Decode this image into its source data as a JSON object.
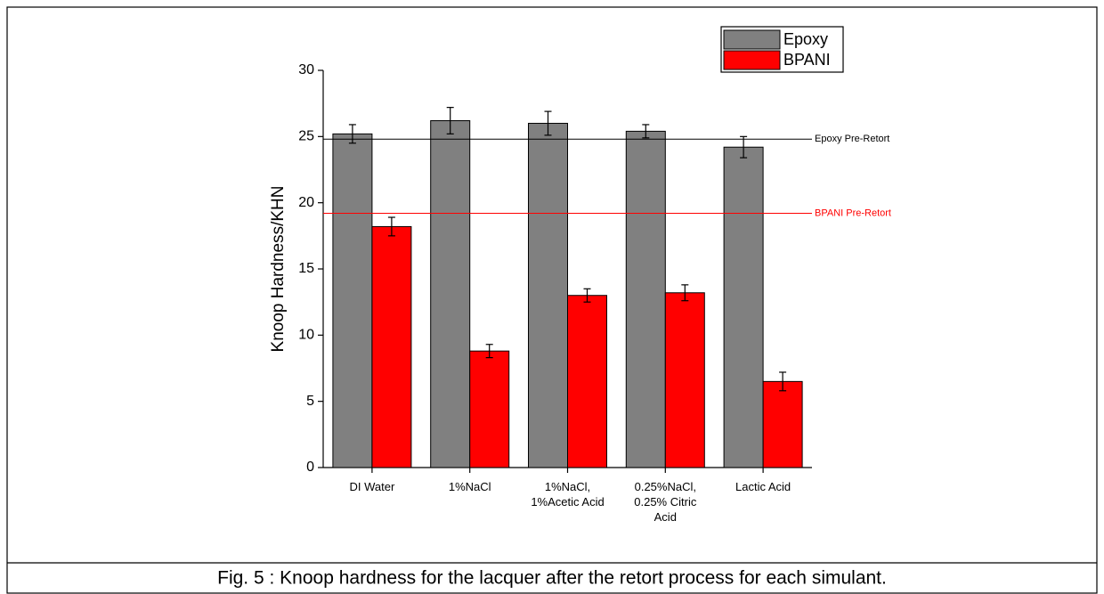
{
  "chart_data": {
    "type": "bar",
    "caption": "Fig. 5 : Knoop hardness for the lacquer after the retort process for each simulant.",
    "ylabel": "Knoop Hardness/KHN",
    "categories": [
      "DI Water",
      "1%NaCl",
      "1%NaCl,\n1%Acetic Acid",
      "0.25%NaCl,\n0.25% Citric\nAcid",
      "Lactic Acid"
    ],
    "series": [
      {
        "name": "Epoxy",
        "color": "#808080",
        "values": [
          25.2,
          26.2,
          26.0,
          25.4,
          24.2
        ],
        "errors": [
          0.7,
          1.0,
          0.9,
          0.5,
          0.8
        ]
      },
      {
        "name": "BPANI",
        "color": "#ff0000",
        "values": [
          18.2,
          8.8,
          13.0,
          13.2,
          6.5
        ],
        "errors": [
          0.7,
          0.5,
          0.5,
          0.6,
          0.7
        ]
      }
    ],
    "reference_lines": [
      {
        "label": "Epoxy Pre-Retort",
        "value": 24.8,
        "color": "#000000"
      },
      {
        "label": "BPANI Pre-Retort",
        "value": 19.2,
        "color": "#ff0000"
      }
    ],
    "ylim": [
      0,
      30
    ],
    "yticks": [
      0,
      5,
      10,
      15,
      20,
      25,
      30
    ],
    "grid": false,
    "legend": "upper right"
  }
}
